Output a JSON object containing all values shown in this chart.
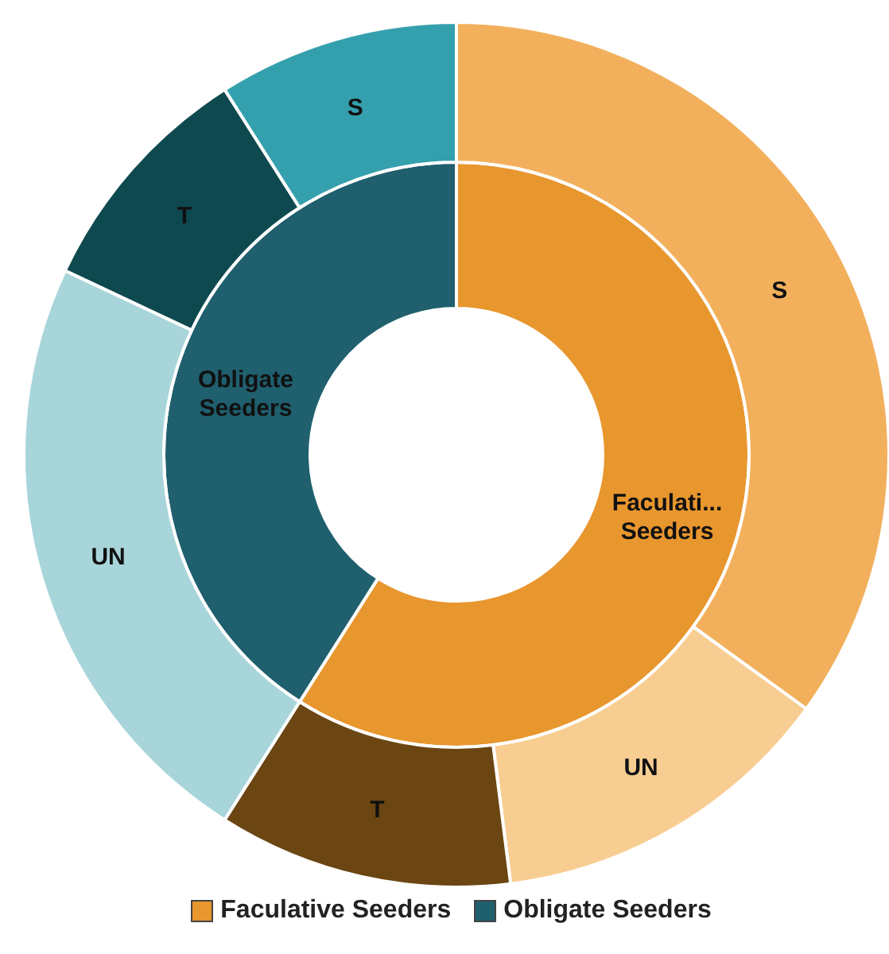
{
  "chart_data": {
    "type": "donut",
    "legend": "bottom",
    "categories": [
      "Faculative Seeders",
      null,
      null,
      "Obligate Seeders",
      null,
      null
    ],
    "series": [
      {
        "values": [
          59,
          null,
          null,
          41,
          null,
          null
        ],
        "colors": [
          "#e8962e",
          null,
          null,
          "#1f5f6e",
          null,
          null
        ],
        "value_labels": [
          "Faculati... Seeders",
          null,
          null,
          "Obligate Seeders",
          null,
          null
        ]
      },
      {
        "values": [
          35,
          13,
          11,
          23,
          9,
          9
        ],
        "colors": [
          "#f2b05c",
          "#f8cd92",
          "#6b4612",
          "#a8d5da",
          "#0f4950",
          "#35a0ad"
        ],
        "value_labels": [
          "S",
          "UN",
          "T",
          "UN",
          "T",
          "S"
        ]
      }
    ]
  }
}
